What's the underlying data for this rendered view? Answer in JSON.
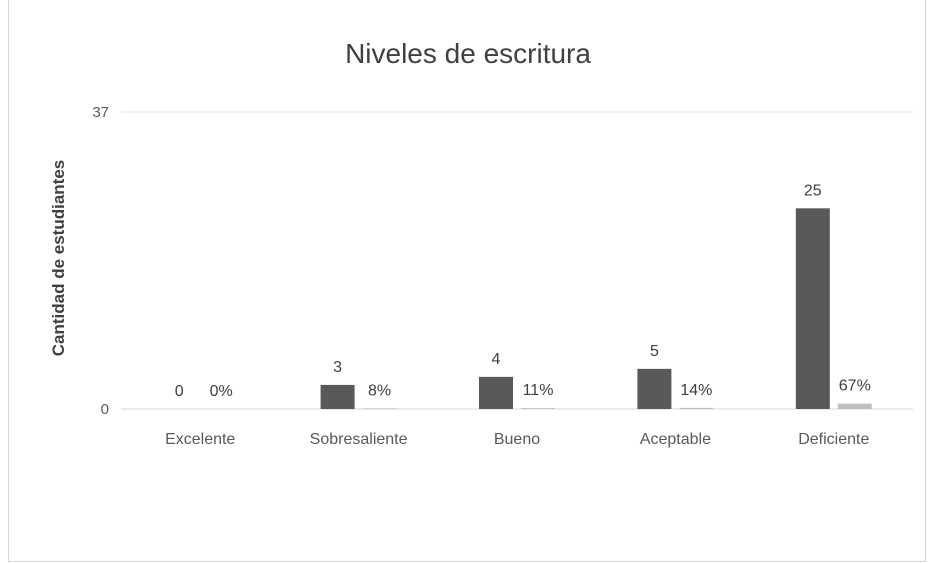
{
  "chart_data": {
    "type": "bar",
    "title": "Niveles de escritura",
    "xlabel": "",
    "ylabel": "Cantidad de estudiantes",
    "categories": [
      "Excelente",
      "Sobresaliente",
      "Bueno",
      "Aceptable",
      "Deficiente"
    ],
    "series": [
      {
        "values": [
          0,
          3,
          4,
          5,
          25
        ],
        "labels": [
          "0",
          "3",
          "4",
          "5",
          "25"
        ],
        "color": "#595959"
      },
      {
        "values": [
          0,
          0.08,
          0.11,
          0.14,
          0.67
        ],
        "labels": [
          "0%",
          "8%",
          "11%",
          "14%",
          "67%"
        ],
        "color": "#bfbfbf"
      }
    ],
    "ylim": [
      0,
      37
    ],
    "yticks": [
      "0",
      "37"
    ],
    "grid": true,
    "legend": "none"
  }
}
